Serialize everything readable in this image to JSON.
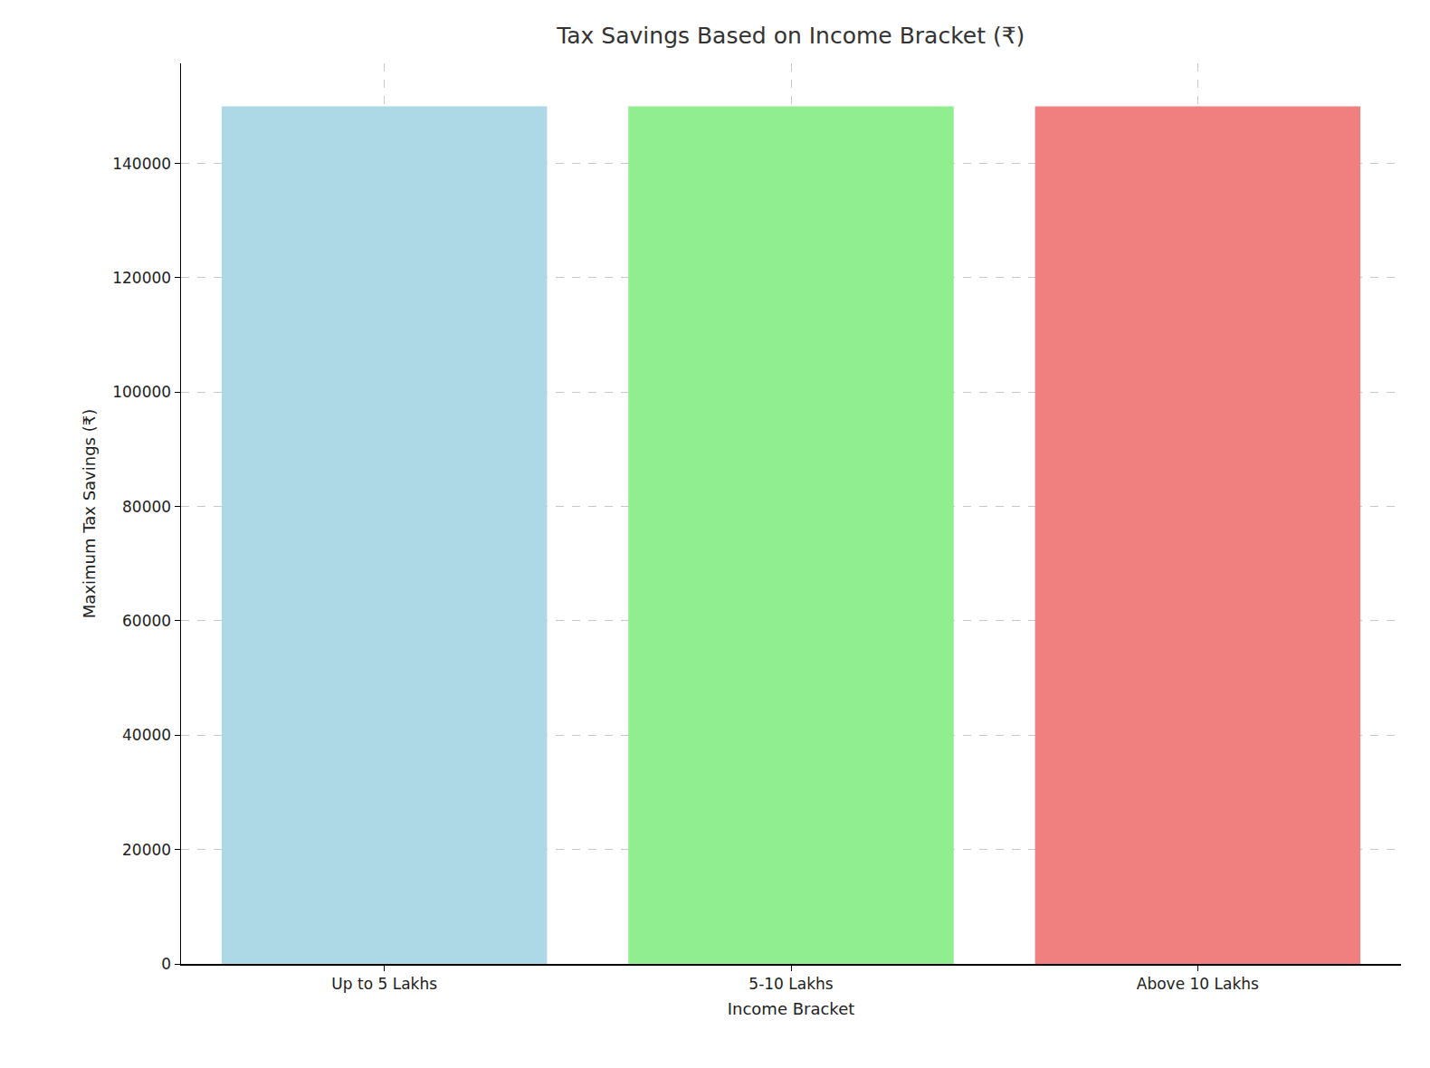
{
  "chart_data": {
    "type": "bar",
    "title": "Tax Savings Based on Income Bracket (₹)",
    "x_label": "Income Bracket",
    "y_label": "Maximum Tax Savings (₹)",
    "categories": [
      "Up to 5 Lakhs",
      "5-10 Lakhs",
      "Above 10 Lakhs"
    ],
    "values": [
      150000,
      150000,
      150000
    ],
    "colors": [
      "#add8e6",
      "#90ee90",
      "#f08080"
    ],
    "ylim": [
      0,
      157500
    ],
    "yticks": [
      0,
      20000,
      40000,
      60000,
      80000,
      100000,
      120000,
      140000
    ],
    "grid": true
  }
}
